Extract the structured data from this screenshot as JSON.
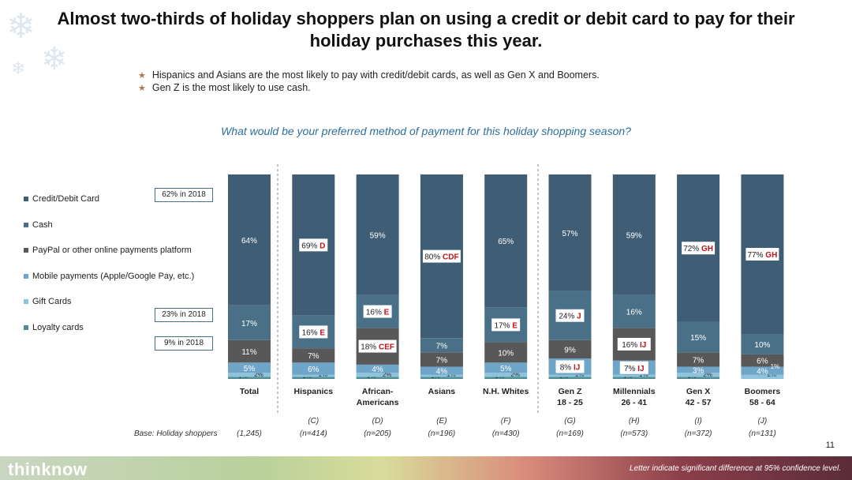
{
  "title": "Almost two-thirds of holiday shoppers plan on using a credit or debit card to pay for their holiday purchases this year.",
  "bullets": [
    "Hispanics and Asians are the most likely to pay with credit/debit cards, as well as Gen X and Boomers.",
    "Gen Z is the most likely to use cash."
  ],
  "question": "What would be your preferred method of payment for this holiday shopping season?",
  "callouts": [
    "62% in 2018",
    "23% in 2018",
    "9% in 2018"
  ],
  "base_label": "Base: Holiday shoppers",
  "page_number": "11",
  "footnote": "Letter indicate significant difference at 95% confidence level.",
  "brand": "thinknow",
  "colors": {
    "Credit/Debit Card": "#3f5d75",
    "Cash": "#4a7088",
    "PayPal or other online payments platform": "#585858",
    "Mobile payments (Apple/Google Pay, etc.)": "#6fa5c9",
    "Gift Cards": "#8fc3dc",
    "Loyalty cards": "#4f8f93"
  },
  "chart_data": {
    "type": "bar",
    "stacked": true,
    "ylim": [
      0,
      100
    ],
    "legend_position": "left",
    "categories": [
      "Total",
      "Hispanics",
      "African-\nAmericans",
      "Asians",
      "N.H. Whites",
      "Gen Z\n18 - 25",
      "Millennials\n26 - 41",
      "Gen X\n42 - 57",
      "Boomers\n58 - 64"
    ],
    "letters": [
      "",
      "(C)",
      "(D)",
      "(E)",
      "(F)",
      "(G)",
      "(H)",
      "(I)",
      "(J)"
    ],
    "bases": [
      "(1,245)",
      "(n=414)",
      "(n=205)",
      "(n=196)",
      "(n=430)",
      "(n=169)",
      "(n=573)",
      "(n=372)",
      "(n=131)"
    ],
    "series": [
      {
        "name": "Loyalty cards",
        "values": [
          1,
          1,
          1,
          1,
          1,
          1,
          1,
          1,
          0
        ],
        "labels": [
          "1%",
          "1%",
          "1%",
          "1%",
          "1%",
          "1%",
          "1%",
          "1%",
          ""
        ]
      },
      {
        "name": "Gift Cards",
        "values": [
          2,
          1,
          2,
          1,
          2,
          1,
          1,
          2,
          2
        ],
        "labels": [
          "2%",
          "1%",
          "2%",
          "1%",
          "2%",
          "1%",
          "1%",
          "2%",
          "2%"
        ]
      },
      {
        "name": "Mobile payments (Apple/Google Pay, etc.)",
        "values": [
          5,
          6,
          4,
          4,
          5,
          8,
          7,
          3,
          4
        ],
        "labels": [
          "5%",
          "6%",
          "4%",
          "4%",
          "5%",
          "8% IJ",
          "7% IJ",
          "3%",
          "4%"
        ]
      },
      {
        "name": "PayPal or other online payments platform",
        "values": [
          11,
          7,
          18,
          7,
          10,
          9,
          16,
          7,
          6
        ],
        "labels": [
          "11%",
          "7%",
          "18% CEF",
          "7%",
          "10%",
          "9%",
          "16% IJ",
          "7%",
          "6%"
        ]
      },
      {
        "name": "Cash",
        "values": [
          17,
          16,
          16,
          7,
          17,
          24,
          16,
          15,
          10
        ],
        "labels": [
          "17%",
          "16% E",
          "16% E",
          "7%",
          "17% E",
          "24% J",
          "16%",
          "15%",
          "10%"
        ]
      },
      {
        "name": "Credit/Debit Card",
        "values": [
          64,
          69,
          59,
          80,
          65,
          57,
          59,
          72,
          77
        ],
        "labels": [
          "64%",
          "69% D",
          "59%",
          "80% CDF",
          "65%",
          "57%",
          "59%",
          "72% GH",
          "77% GH"
        ]
      }
    ],
    "extra_labels": [
      {
        "category": "Boomers\n58 - 64",
        "text": "1%"
      }
    ]
  }
}
